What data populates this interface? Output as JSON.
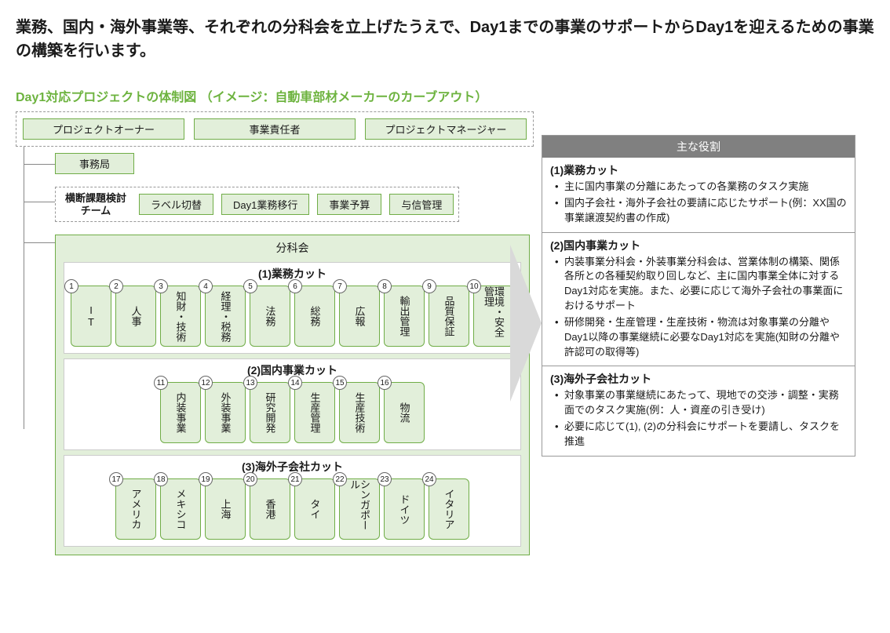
{
  "title": "業務、国内・海外事業等、それぞれの分科会を立上げたうえで、Day1までの事業のサポートからDay1を迎えるための事業の構築を行います。",
  "subtitle": "Day1対応プロジェクトの体制図 （イメージ：自動車部材メーカーのカーブアウト）",
  "topRoles": [
    "プロジェクトオーナー",
    "事業責任者",
    "プロジェクトマネージャー"
  ],
  "secretariat": "事務局",
  "crossTeam": {
    "label": "横断課題検討チーム",
    "items": [
      "ラベル切替",
      "Day1業務移行",
      "事業予算",
      "与信管理"
    ]
  },
  "subcommitteeLabel": "分科会",
  "cuts": {
    "section1": {
      "title": "(1)業務カット",
      "cards": [
        {
          "num": "1",
          "label": "IT"
        },
        {
          "num": "2",
          "label": "人事"
        },
        {
          "num": "3",
          "label": "知財・技術"
        },
        {
          "num": "4",
          "label": "経理・税務"
        },
        {
          "num": "5",
          "label": "法務"
        },
        {
          "num": "6",
          "label": "総務"
        },
        {
          "num": "7",
          "label": "広報"
        },
        {
          "num": "8",
          "label": "輸出管理"
        },
        {
          "num": "9",
          "label": "品質保証"
        },
        {
          "num": "10",
          "label": "環境・安全管理"
        }
      ]
    },
    "section2": {
      "title": "(2)国内事業カット",
      "cards": [
        {
          "num": "11",
          "label": "内装事業"
        },
        {
          "num": "12",
          "label": "外装事業"
        },
        {
          "num": "13",
          "label": "研究開発"
        },
        {
          "num": "14",
          "label": "生産管理"
        },
        {
          "num": "15",
          "label": "生産技術"
        },
        {
          "num": "16",
          "label": "物流"
        }
      ]
    },
    "section3": {
      "title": "(3)海外子会社カット",
      "cards": [
        {
          "num": "17",
          "label": "アメリカ"
        },
        {
          "num": "18",
          "label": "メキシコ"
        },
        {
          "num": "19",
          "label": "上海"
        },
        {
          "num": "20",
          "label": "香港"
        },
        {
          "num": "21",
          "label": "タイ"
        },
        {
          "num": "22",
          "label": "シンガポール"
        },
        {
          "num": "23",
          "label": "ドイツ"
        },
        {
          "num": "24",
          "label": "イタリア"
        }
      ]
    }
  },
  "roles": {
    "header": "主な役割",
    "sections": [
      {
        "title": "(1)業務カット",
        "bullets": [
          "主に国内事業の分離にあたっての各業務のタスク実施",
          "国内子会社・海外子会社の要請に応じたサポート(例：XX国の事業譲渡契約書の作成)"
        ]
      },
      {
        "title": "(2)国内事業カット",
        "bullets": [
          "内装事業分科会・外装事業分科会は、営業体制の構築、関係各所との各種契約取り回しなど、主に国内事業全体に対するDay1対応を実施。また、必要に応じて海外子会社の事業面におけるサポート",
          "研修開発・生産管理・生産技術・物流は対象事業の分離やDay1以降の事業継続に必要なDay1対応を実施(知財の分離や許認可の取得等)"
        ]
      },
      {
        "title": "(3)海外子会社カット",
        "bullets": [
          "対象事業の事業継続にあたって、現地での交渉・調整・実務面でのタスク実施(例：人・資産の引き受け)",
          "必要に応じて(1), (2)の分科会にサポートを要請し、タスクを推進"
        ]
      }
    ]
  },
  "colors": {
    "accentGreen": "#6db33f",
    "boxFill": "#e2efda",
    "boxBorder": "#70ad47",
    "headerGray": "#808080",
    "arrowFill": "#d9d9d9"
  }
}
